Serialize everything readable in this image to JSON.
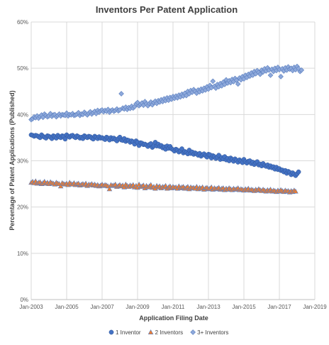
{
  "chart_data": {
    "type": "scatter",
    "title": "Inventors Per Patent Application",
    "xlabel": "Application Filing Date",
    "ylabel": "Percentage of Patent Applications (Published)",
    "x_ticks": [
      "Jan-2003",
      "Jan-2005",
      "Jan-2007",
      "Jan-2009",
      "Jan-2011",
      "Jan-2013",
      "Jan-2015",
      "Jan-2017",
      "Jan-2019"
    ],
    "y_ticks": [
      "0%",
      "10%",
      "20%",
      "30%",
      "40%",
      "50%",
      "60%"
    ],
    "xlim": [
      "2003-01",
      "2019-01"
    ],
    "ylim": [
      0,
      60
    ],
    "grid": true,
    "legend_position": "bottom",
    "x_start": "2003-01",
    "x_end": "2017-12",
    "x_interval": "monthly",
    "series": [
      {
        "name": "1 Inventor",
        "marker": "circle",
        "color": "#4472C4",
        "values": [
          35.6,
          35.5,
          35.3,
          35.5,
          35.4,
          35.2,
          35.0,
          35.6,
          35.3,
          35.1,
          34.9,
          35.4,
          35.3,
          35.1,
          34.8,
          35.4,
          35.2,
          34.9,
          35.5,
          35.2,
          35.0,
          35.4,
          35.3,
          34.7,
          35.6,
          35.3,
          35.1,
          35.4,
          35.5,
          35.2,
          35.0,
          35.4,
          35.2,
          34.9,
          35.1,
          34.8,
          35.4,
          35.2,
          35.0,
          35.3,
          35.2,
          34.9,
          34.7,
          35.3,
          35.1,
          34.8,
          35.2,
          34.9,
          35.0,
          34.8,
          34.6,
          35.1,
          34.9,
          34.5,
          35.0,
          34.7,
          34.9,
          34.6,
          34.3,
          34.8,
          35.1,
          34.5,
          34.4,
          34.8,
          34.2,
          34.5,
          34.4,
          34.0,
          34.3,
          34.1,
          33.6,
          34.3,
          34.0,
          33.3,
          33.9,
          33.8,
          33.5,
          33.6,
          33.4,
          33.1,
          33.5,
          33.7,
          32.9,
          33.2,
          34.0,
          33.2,
          33.6,
          33.1,
          33.3,
          32.8,
          33.0,
          32.5,
          33.2,
          32.7,
          33.1,
          32.6,
          32.4,
          32.1,
          32.5,
          32.3,
          31.9,
          32.2,
          32.6,
          31.7,
          32.0,
          31.8,
          31.5,
          32.3,
          31.6,
          31.9,
          31.4,
          31.7,
          31.5,
          31.2,
          31.6,
          31.0,
          31.3,
          31.5,
          31.1,
          30.8,
          31.4,
          31.3,
          30.6,
          31.1,
          30.9,
          30.5,
          30.8,
          31.2,
          30.3,
          30.7,
          30.4,
          30.9,
          30.2,
          30.5,
          30.0,
          30.6,
          30.3,
          29.9,
          30.4,
          30.1,
          29.7,
          30.2,
          29.9,
          29.6,
          30.3,
          29.8,
          29.5,
          29.9,
          30.0,
          29.4,
          29.7,
          29.2,
          29.6,
          29.8,
          29.1,
          29.3,
          28.9,
          29.4,
          29.0,
          28.8,
          29.1,
          28.6,
          28.9,
          28.5,
          28.7,
          28.2,
          28.6,
          28.1,
          28.3,
          27.9,
          28.0,
          27.6,
          27.9,
          27.3,
          27.7,
          27.5,
          27.0,
          27.4,
          27.1,
          26.8,
          27.2,
          27.6
        ]
      },
      {
        "name": "2 Inventors",
        "marker": "triangle",
        "color": "#ED7D31",
        "values": [
          25.3,
          25.5,
          25.2,
          25.6,
          25.1,
          25.3,
          25.4,
          25.0,
          25.2,
          25.5,
          25.1,
          25.3,
          25.0,
          25.4,
          25.2,
          25.1,
          24.9,
          25.3,
          25.1,
          25.0,
          24.5,
          25.2,
          25.0,
          24.9,
          25.1,
          24.8,
          25.3,
          25.0,
          24.9,
          25.2,
          24.8,
          25.0,
          25.1,
          24.7,
          24.9,
          25.0,
          24.8,
          25.1,
          24.6,
          24.9,
          24.8,
          25.0,
          24.7,
          24.9,
          24.6,
          24.8,
          24.5,
          24.7,
          24.9,
          24.6,
          24.8,
          24.7,
          24.5,
          23.9,
          24.8,
          24.6,
          24.7,
          24.9,
          24.4,
          24.6,
          24.8,
          24.5,
          24.7,
          24.3,
          24.9,
          24.6,
          24.4,
          24.7,
          24.5,
          24.8,
          24.3,
          24.6,
          24.2,
          24.9,
          24.4,
          24.5,
          24.7,
          24.1,
          24.6,
          24.3,
          24.5,
          24.8,
          24.2,
          24.4,
          24.0,
          24.6,
          24.3,
          24.5,
          24.1,
          24.4,
          24.3,
          24.6,
          24.0,
          24.3,
          24.5,
          24.1,
          24.4,
          24.2,
          24.3,
          24.0,
          24.5,
          24.1,
          24.3,
          24.4,
          24.0,
          24.2,
          24.4,
          23.9,
          24.3,
          24.1,
          24.2,
          24.0,
          24.4,
          23.9,
          24.2,
          24.0,
          24.3,
          23.8,
          24.1,
          24.2,
          23.9,
          24.0,
          24.3,
          23.8,
          24.1,
          23.9,
          24.0,
          24.2,
          23.8,
          24.0,
          24.1,
          23.7,
          24.0,
          23.8,
          24.1,
          23.9,
          23.7,
          24.0,
          23.8,
          23.9,
          24.1,
          23.7,
          23.9,
          23.8,
          23.6,
          23.9,
          23.7,
          24.0,
          23.6,
          23.8,
          23.7,
          23.5,
          23.8,
          23.6,
          23.9,
          23.7,
          23.5,
          23.8,
          23.6,
          23.4,
          23.7,
          23.5,
          23.8,
          23.4,
          23.6,
          23.5,
          23.3,
          23.6,
          23.4,
          23.7,
          23.5,
          23.3,
          23.6,
          23.4,
          23.5,
          23.2,
          23.5,
          23.3,
          23.6,
          23.4
        ]
      },
      {
        "name": "3+ Inventors",
        "marker": "diamond",
        "color": "#8EA9DB",
        "values": [
          38.9,
          39.1,
          39.5,
          39.3,
          39.7,
          39.2,
          39.6,
          39.9,
          39.4,
          40.1,
          39.8,
          39.5,
          39.7,
          40.2,
          39.6,
          39.9,
          40.0,
          39.5,
          39.8,
          40.1,
          39.7,
          40.0,
          39.9,
          39.8,
          40.3,
          39.7,
          40.0,
          39.9,
          40.2,
          39.8,
          39.9,
          40.1,
          40.4,
          39.8,
          40.1,
          40.0,
          40.5,
          40.2,
          39.9,
          40.3,
          40.6,
          40.1,
          40.4,
          40.7,
          40.2,
          40.9,
          40.5,
          40.8,
          41.0,
          40.6,
          40.9,
          40.7,
          41.1,
          40.5,
          40.8,
          41.0,
          40.7,
          40.9,
          41.2,
          40.8,
          41.0,
          44.5,
          41.4,
          41.2,
          41.6,
          41.1,
          41.5,
          41.3,
          41.8,
          41.4,
          41.7,
          42.3,
          42.6,
          41.9,
          42.2,
          42.5,
          42.0,
          42.8,
          42.3,
          41.9,
          42.4,
          42.7,
          42.1,
          42.6,
          42.9,
          42.4,
          43.0,
          42.7,
          43.2,
          42.8,
          43.4,
          43.0,
          43.6,
          43.1,
          43.7,
          43.3,
          43.9,
          43.5,
          44.0,
          43.6,
          44.2,
          43.8,
          44.4,
          44.0,
          44.6,
          44.1,
          45.0,
          44.5,
          45.2,
          44.8,
          45.4,
          45.0,
          44.6,
          45.3,
          44.9,
          45.5,
          45.1,
          45.7,
          45.3,
          46.0,
          45.5,
          46.3,
          45.8,
          47.2,
          46.1,
          45.7,
          46.5,
          46.0,
          46.7,
          46.2,
          47.0,
          46.5,
          47.5,
          46.8,
          47.3,
          46.9,
          47.6,
          47.1,
          47.8,
          47.4,
          46.6,
          47.9,
          47.5,
          48.2,
          47.7,
          48.5,
          48.0,
          48.7,
          48.3,
          49.0,
          48.5,
          49.3,
          48.8,
          49.5,
          49.1,
          48.7,
          49.6,
          49.2,
          49.9,
          49.4,
          50.1,
          49.6,
          48.5,
          49.8,
          49.3,
          50.0,
          49.5,
          50.2,
          49.7,
          48.2,
          49.9,
          49.4,
          50.1,
          49.6,
          50.3,
          49.8,
          50.0,
          49.5,
          50.2,
          49.7,
          50.4,
          49.9,
          49.3,
          49.6
        ]
      }
    ]
  }
}
